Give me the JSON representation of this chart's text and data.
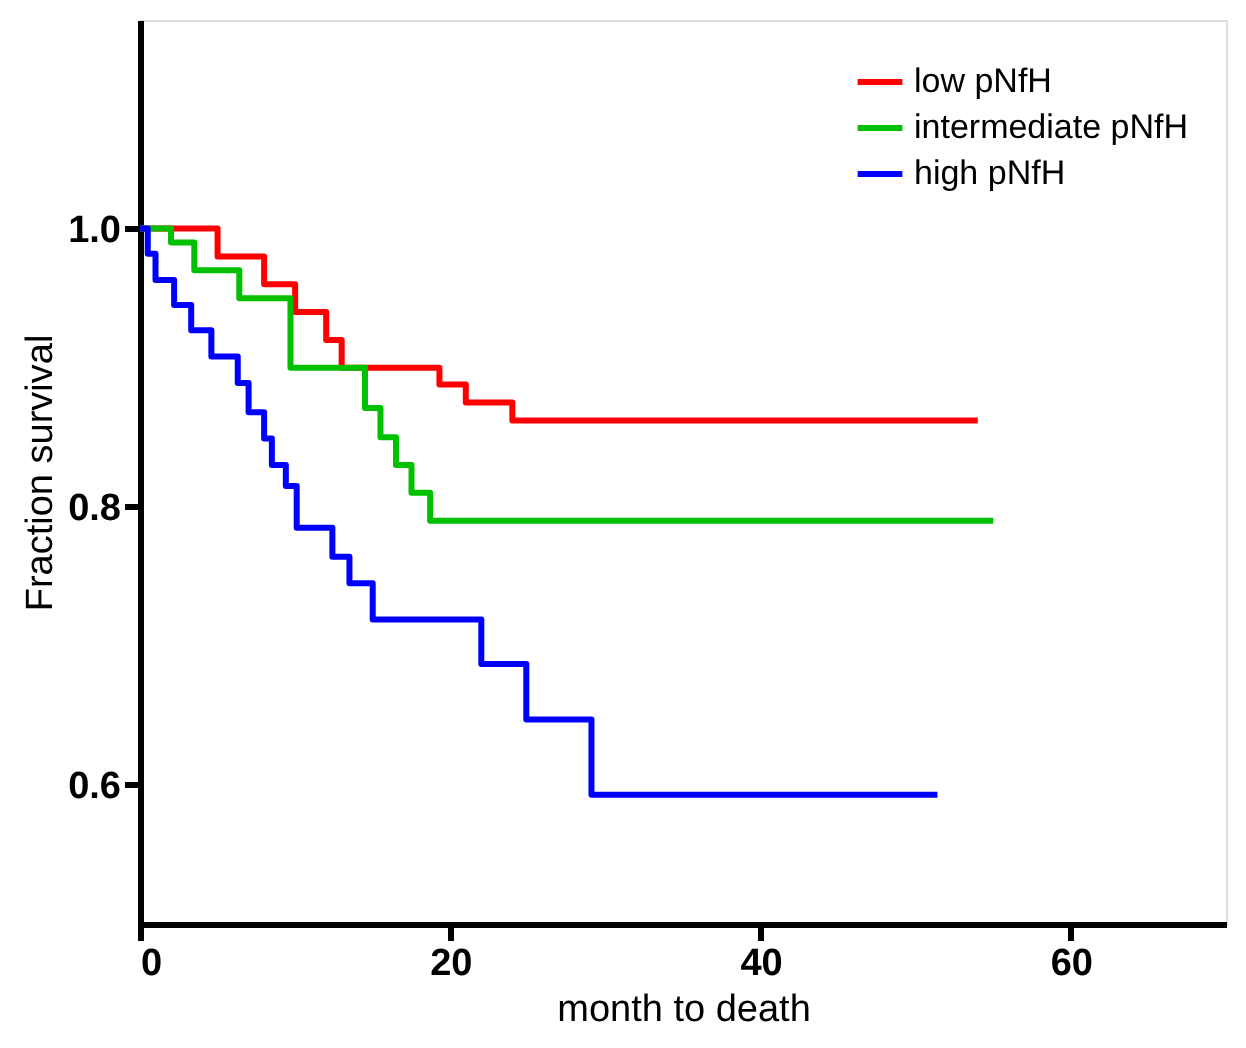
{
  "chart_data": {
    "type": "step",
    "xlabel": "month to death",
    "ylabel": "Fraction survival",
    "xlim": [
      0,
      70
    ],
    "xticks": [
      0,
      20,
      40,
      60
    ],
    "ylim": [
      0.5,
      1.15
    ],
    "yticks": [
      {
        "value": 0.6,
        "label": "0.6"
      },
      {
        "value": 0.8,
        "label": "0.8"
      },
      {
        "value": 1.0,
        "label": "1.0"
      }
    ],
    "grid": false,
    "legend": "top right",
    "marker": "none",
    "line_style": "solid",
    "series": [
      {
        "name": "low pNfH",
        "color": "#ff0000",
        "x": [
          0,
          5,
          8,
          10,
          12,
          13,
          19.3,
          21,
          24,
          54
        ],
        "values": [
          1.0,
          0.98,
          0.96,
          0.94,
          0.92,
          0.9,
          0.888,
          0.875,
          0.862,
          0.862
        ]
      },
      {
        "name": "intermediate pNfH",
        "color": "#00c000",
        "x": [
          0,
          2,
          3.5,
          6.4,
          9.7,
          13.8,
          14.5,
          15.5,
          16.5,
          17.5,
          18.7,
          55
        ],
        "values": [
          1.0,
          0.99,
          0.97,
          0.95,
          0.9,
          0.9,
          0.871,
          0.85,
          0.83,
          0.81,
          0.79,
          0.79
        ]
      },
      {
        "name": "high pNfH",
        "color": "#0000ff",
        "x": [
          0,
          0.5,
          1,
          2.2,
          3.3,
          4.6,
          6.3,
          7,
          8,
          8.5,
          9.4,
          10.1,
          12.4,
          13.5,
          15,
          22,
          24.9,
          29.1,
          51.4
        ],
        "values": [
          1.0,
          0.982,
          0.963,
          0.945,
          0.927,
          0.908,
          0.889,
          0.868,
          0.849,
          0.83,
          0.815,
          0.785,
          0.764,
          0.745,
          0.719,
          0.687,
          0.647,
          0.593,
          0.593
        ]
      }
    ]
  }
}
